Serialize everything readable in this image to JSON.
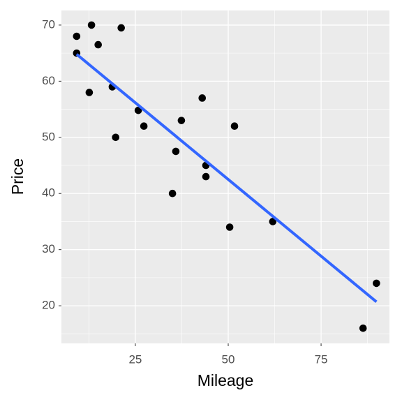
{
  "chart_data": {
    "type": "scatter",
    "x_label": "Mileage",
    "y_label": "Price",
    "x": [
      9.2,
      13.2,
      9.2,
      15.0,
      21.2,
      12.6,
      18.8,
      25.8,
      27.3,
      19.7,
      37.4,
      43.0,
      35.9,
      51.7,
      44.0,
      44.0,
      35.0,
      50.4,
      62.0,
      86.3,
      89.9
    ],
    "values": [
      68,
      70,
      65,
      66.5,
      69.5,
      58,
      59,
      54.8,
      52,
      50,
      53,
      57,
      47.5,
      52,
      45,
      43,
      40,
      34,
      35,
      16,
      24
    ],
    "color": "#000000",
    "trend_line": {
      "x": [
        9.2,
        89.9
      ],
      "y": [
        64.8,
        20.7
      ],
      "color": "#3366FF"
    },
    "xlim": [
      5.1,
      93.4
    ],
    "ylim": [
      13.3,
      72.6
    ],
    "xticks": [
      25,
      50,
      75
    ],
    "yticks": [
      20,
      30,
      40,
      50,
      60,
      70
    ],
    "grid": true
  }
}
